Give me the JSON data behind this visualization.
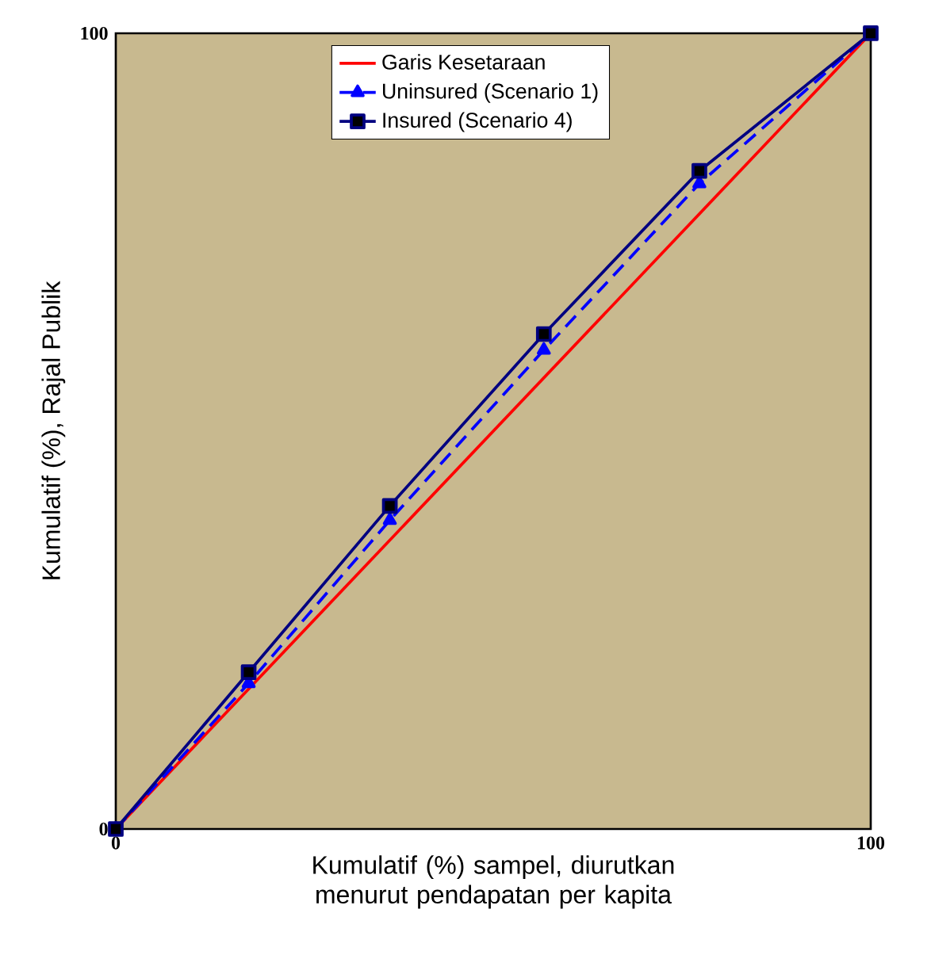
{
  "chart_data": {
    "type": "line",
    "xlabel": "Kumulatif (%)  sampel, diurutkan menurut pendapatan per kapita",
    "ylabel": "Kumulatif (%),  Rajal Publik",
    "xlim": [
      0,
      100
    ],
    "ylim": [
      0,
      100
    ],
    "xticks": [
      0,
      100
    ],
    "yticks": [
      0,
      100
    ],
    "legend": "top",
    "series": [
      {
        "name": "Garis Kesetaraan",
        "color": "#ff0000",
        "x": [
          0,
          100
        ],
        "values": [
          0,
          100
        ],
        "marker": "none",
        "line_style": "solid"
      },
      {
        "name": "Uninsured (Scenario 1)",
        "color": "#0000ff",
        "x": [
          0,
          17.6,
          36.3,
          56.7,
          77.3,
          100
        ],
        "values": [
          0,
          18.3,
          38.8,
          60.2,
          81.1,
          100
        ],
        "marker": "triangle",
        "line_style": "dashed"
      },
      {
        "name": "Insured (Scenario 4)",
        "color": "#000080",
        "x": [
          0,
          17.6,
          36.3,
          56.7,
          77.3,
          100
        ],
        "values": [
          0,
          19.7,
          40.6,
          62.2,
          82.7,
          100
        ],
        "marker": "square",
        "line_style": "solid"
      }
    ]
  }
}
